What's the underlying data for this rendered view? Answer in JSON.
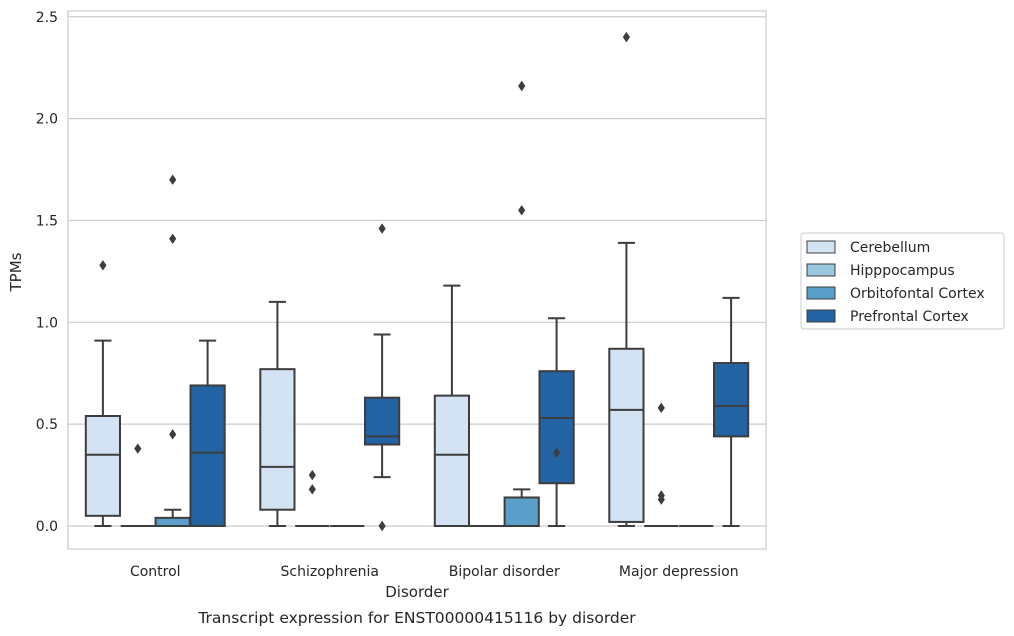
{
  "chart_data": {
    "type": "box",
    "caption": "Transcript expression for ENST00000415116 by disorder",
    "xlabel": "Disorder",
    "ylabel": "TPMs",
    "ylim": [
      -0.12,
      2.53
    ],
    "yticks": [
      0.0,
      0.5,
      1.0,
      1.5,
      2.0,
      2.5
    ],
    "ytick_labels": [
      "0.0",
      "0.5",
      "1.0",
      "1.5",
      "2.0",
      "2.5"
    ],
    "grid": "horizontal",
    "legend_position": "right",
    "categories": [
      "Control",
      "Schizophrenia",
      "Bipolar disorder",
      "Major depression"
    ],
    "series": [
      {
        "name": "Cerebellum",
        "color": "#d3e3f3",
        "boxes": [
          {
            "whisker_low": 0.0,
            "q1": 0.05,
            "median": 0.35,
            "q3": 0.54,
            "whisker_high": 0.91,
            "outliers": [
              1.28
            ]
          },
          {
            "whisker_low": 0.0,
            "q1": 0.08,
            "median": 0.29,
            "q3": 0.77,
            "whisker_high": 1.1,
            "outliers": []
          },
          {
            "whisker_low": 0.0,
            "q1": 0.0,
            "median": 0.35,
            "q3": 0.64,
            "whisker_high": 1.18,
            "outliers": []
          },
          {
            "whisker_low": 0.0,
            "q1": 0.02,
            "median": 0.57,
            "q3": 0.87,
            "whisker_high": 1.39,
            "outliers": [
              2.4
            ]
          }
        ]
      },
      {
        "name": "Hipppocampus",
        "color": "#9ac8e0",
        "boxes": [
          {
            "whisker_low": 0.0,
            "q1": 0.0,
            "median": 0.0,
            "q3": 0.0,
            "whisker_high": 0.0,
            "outliers": [
              0.38
            ]
          },
          {
            "whisker_low": 0.0,
            "q1": 0.0,
            "median": 0.0,
            "q3": 0.0,
            "whisker_high": 0.0,
            "outliers": [
              0.25,
              0.18
            ]
          },
          {
            "whisker_low": 0.0,
            "q1": 0.0,
            "median": 0.0,
            "q3": 0.0,
            "whisker_high": 0.0,
            "outliers": []
          },
          {
            "whisker_low": 0.0,
            "q1": 0.0,
            "median": 0.0,
            "q3": 0.0,
            "whisker_high": 0.0,
            "outliers": [
              0.58,
              0.15,
              0.13
            ]
          }
        ]
      },
      {
        "name": "Orbitofontal Cortex",
        "color": "#5a9fc9",
        "boxes": [
          {
            "whisker_low": 0.0,
            "q1": 0.0,
            "median": 0.0,
            "q3": 0.04,
            "whisker_high": 0.08,
            "outliers": [
              0.45,
              1.41,
              1.7
            ]
          },
          {
            "whisker_low": 0.0,
            "q1": 0.0,
            "median": 0.0,
            "q3": 0.0,
            "whisker_high": 0.0,
            "outliers": []
          },
          {
            "whisker_low": 0.0,
            "q1": 0.0,
            "median": 0.0,
            "q3": 0.14,
            "whisker_high": 0.18,
            "outliers": [
              1.55,
              2.16
            ]
          },
          {
            "whisker_low": 0.0,
            "q1": 0.0,
            "median": 0.0,
            "q3": 0.0,
            "whisker_high": 0.0,
            "outliers": []
          }
        ]
      },
      {
        "name": "Prefrontal Cortex",
        "color": "#2363a4",
        "boxes": [
          {
            "whisker_low": 0.0,
            "q1": 0.0,
            "median": 0.36,
            "q3": 0.69,
            "whisker_high": 0.91,
            "outliers": []
          },
          {
            "whisker_low": 0.24,
            "q1": 0.4,
            "median": 0.44,
            "q3": 0.63,
            "whisker_high": 0.94,
            "outliers": [
              1.46,
              0.0
            ]
          },
          {
            "whisker_low": 0.0,
            "q1": 0.21,
            "median": 0.53,
            "q3": 0.76,
            "whisker_high": 1.02,
            "outliers": [
              0.36
            ]
          },
          {
            "whisker_low": 0.0,
            "q1": 0.44,
            "median": 0.59,
            "q3": 0.8,
            "whisker_high": 1.12,
            "outliers": []
          }
        ]
      }
    ]
  }
}
